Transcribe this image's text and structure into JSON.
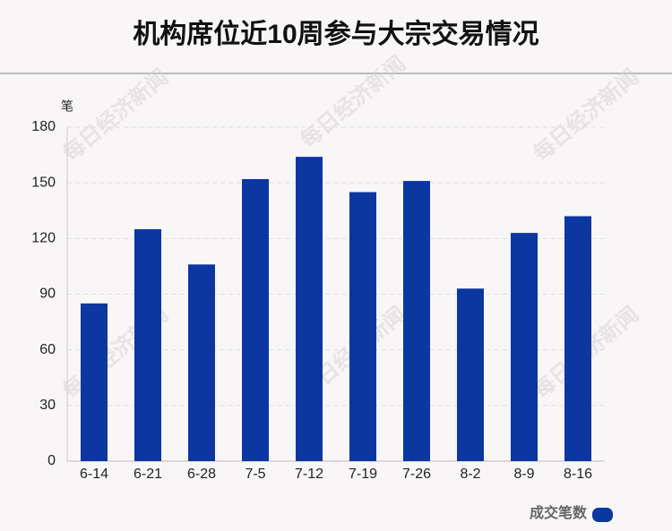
{
  "chart_data": {
    "type": "bar",
    "title": "机构席位近10周参与大宗交易情况",
    "y_label": "笔",
    "watermark": "每日经济新闻",
    "categories": [
      "6-14",
      "6-21",
      "6-28",
      "7-5",
      "7-12",
      "7-19",
      "7-26",
      "8-2",
      "8-9",
      "8-16"
    ],
    "series": [
      {
        "name": "成交笔数",
        "color": "#0c36a0",
        "values": [
          85,
          125,
          106,
          152,
          164,
          145,
          151,
          93,
          123,
          132
        ]
      }
    ],
    "ylim": [
      0,
      180
    ],
    "yticks": [
      0,
      30,
      60,
      90,
      120,
      150,
      180
    ],
    "grid": true,
    "legend": "bottom-right"
  }
}
